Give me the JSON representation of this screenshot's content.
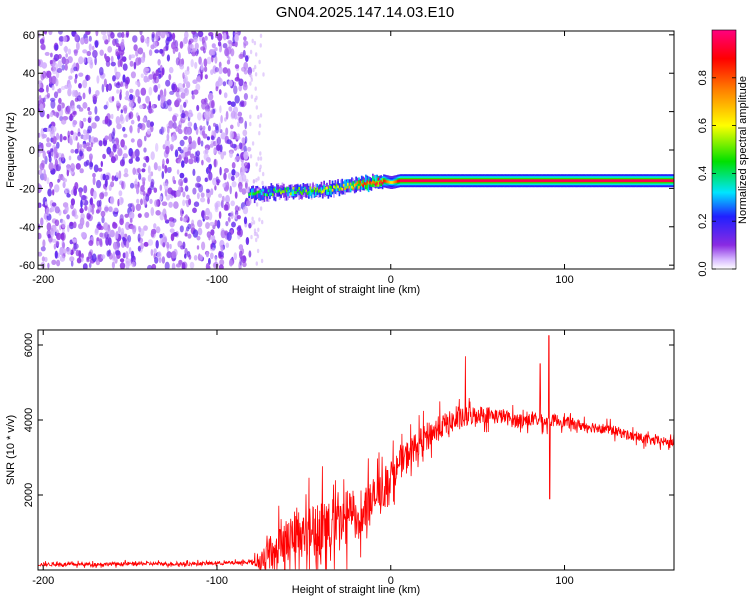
{
  "title": "GN04.2025.147.14.03.E10",
  "chart_data": [
    {
      "type": "heatmap",
      "xlabel": "Height of straight line (km)",
      "ylabel": "Frequency (Hz)",
      "xlim": [
        -203,
        163
      ],
      "ylim": [
        -62,
        62
      ],
      "x_ticks": [
        -200,
        -100,
        0,
        100
      ],
      "y_ticks": [
        -60,
        -40,
        -20,
        0,
        20,
        40,
        60
      ],
      "colorbar": {
        "label": "Normalized spectral amplitude",
        "range": [
          0,
          1
        ],
        "ticks": [
          0.0,
          0.2,
          0.4,
          0.6,
          0.8
        ],
        "colors": [
          "#ffffff",
          "#8a2be2",
          "#2020ff",
          "#00e5ff",
          "#00e000",
          "#ffff00",
          "#ff7f00",
          "#ff0000",
          "#ff007f"
        ]
      },
      "noise_region": {
        "x_range": [
          -203,
          -81
        ],
        "freq_range": [
          -62,
          62
        ],
        "amplitude": 0.1
      },
      "ridge": {
        "x": [
          -82,
          -60,
          -40,
          -25,
          -15,
          -5,
          0,
          5,
          30,
          80,
          163
        ],
        "freq": [
          -23,
          -21.5,
          -21,
          -19,
          -17.5,
          -16,
          -17,
          -16,
          -16,
          -16,
          -16
        ],
        "amplitude": [
          0.4,
          0.45,
          0.5,
          0.6,
          0.8,
          0.9,
          0.6,
          0.95,
          0.95,
          0.95,
          0.95
        ]
      }
    },
    {
      "type": "line",
      "xlabel": "Height of straight line (km)",
      "ylabel": "SNR (10 * v/v)",
      "xlim": [
        -203,
        163
      ],
      "ylim": [
        0,
        6400
      ],
      "x_ticks": [
        -200,
        -100,
        0,
        100
      ],
      "y_ticks": [
        2000,
        4000,
        6000
      ],
      "color": "#ff0000",
      "series": [
        {
          "x": [
            -203,
            -180,
            -160,
            -140,
            -120,
            -100,
            -85,
            -75,
            -70,
            -65,
            -60,
            -55,
            -50,
            -45,
            -40,
            -35,
            -30,
            -25,
            -20,
            -15,
            -10,
            -5,
            0,
            5,
            10,
            15,
            20,
            25,
            30,
            35,
            40,
            45,
            50,
            55,
            60,
            65,
            70,
            75,
            80,
            85,
            90,
            95,
            100,
            110,
            120,
            130,
            140,
            150,
            163
          ],
          "y": [
            150,
            150,
            160,
            170,
            160,
            180,
            200,
            250,
            450,
            700,
            800,
            900,
            1000,
            1100,
            1150,
            1150,
            1200,
            1400,
            1500,
            1700,
            1900,
            2100,
            2500,
            2800,
            3100,
            3300,
            3550,
            3700,
            3850,
            3950,
            4000,
            4100,
            4150,
            4150,
            4100,
            4100,
            4000,
            4000,
            4000,
            4000,
            3950,
            4000,
            3950,
            3850,
            3800,
            3700,
            3550,
            3450,
            3400
          ]
        }
      ],
      "noise_amplitude": [
        {
          "x": -203,
          "amp": 80
        },
        {
          "x": -80,
          "amp": 80
        },
        {
          "x": -72,
          "amp": 700
        },
        {
          "x": -40,
          "amp": 1300
        },
        {
          "x": -20,
          "amp": 1200
        },
        {
          "x": 0,
          "amp": 700
        },
        {
          "x": 20,
          "amp": 600
        },
        {
          "x": 60,
          "amp": 350
        },
        {
          "x": 100,
          "amp": 250
        },
        {
          "x": 163,
          "amp": 200
        }
      ],
      "spikes": [
        {
          "x": 43,
          "y": 5700
        },
        {
          "x": 86,
          "y": 5500
        },
        {
          "x": 91,
          "y": 6250
        },
        {
          "x": 91.5,
          "y": 1900
        }
      ]
    }
  ]
}
